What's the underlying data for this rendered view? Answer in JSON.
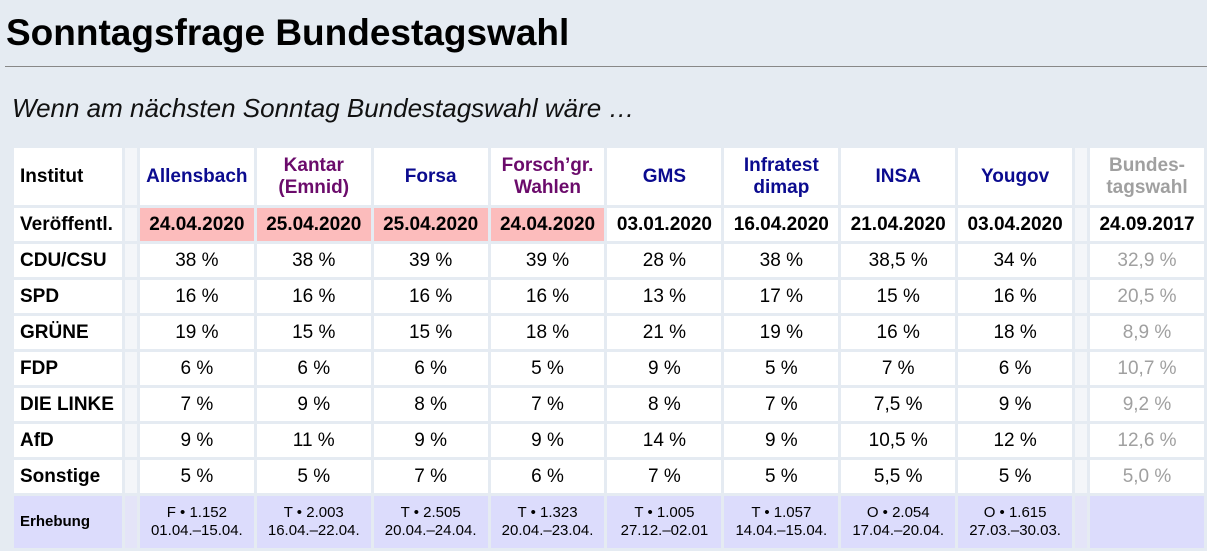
{
  "title": "Sonntagsfrage Bundestagswahl",
  "subtitle": "Wenn am nächsten Sonntag Bundestagswahl wäre …",
  "table": {
    "header_label": "Institut",
    "published_label": "Veröffentl.",
    "survey_label": "Erhebung",
    "institutes": [
      {
        "name": "Allensbach",
        "color": "blue",
        "published": "24.04.2020",
        "recent": true,
        "values": [
          "38 %",
          "16 %",
          "19 %",
          "6 %",
          "7 %",
          "9 %",
          "5 %"
        ],
        "survey1": "F • 1.152",
        "survey2": "01.04.–15.04."
      },
      {
        "name": "Kantar (Emnid)",
        "color": "purple",
        "published": "25.04.2020",
        "recent": true,
        "values": [
          "38 %",
          "16 %",
          "15 %",
          "6 %",
          "9 %",
          "11 %",
          "5 %"
        ],
        "survey1": "T • 2.003",
        "survey2": "16.04.–22.04."
      },
      {
        "name": "Forsa",
        "color": "blue",
        "published": "25.04.2020",
        "recent": true,
        "values": [
          "39 %",
          "16 %",
          "15 %",
          "6 %",
          "8 %",
          "9 %",
          "7 %"
        ],
        "survey1": "T • 2.505",
        "survey2": "20.04.–24.04."
      },
      {
        "name": "Forsch’gr. Wahlen",
        "color": "purple",
        "published": "24.04.2020",
        "recent": true,
        "values": [
          "39 %",
          "16 %",
          "18 %",
          "5 %",
          "7 %",
          "9 %",
          "6 %"
        ],
        "survey1": "T • 1.323",
        "survey2": "20.04.–23.04."
      },
      {
        "name": "GMS",
        "color": "blue",
        "published": "03.01.2020",
        "recent": false,
        "values": [
          "28 %",
          "13 %",
          "21 %",
          "9 %",
          "8 %",
          "14 %",
          "7 %"
        ],
        "survey1": "T • 1.005",
        "survey2": "27.12.–02.01"
      },
      {
        "name": "Infratest dimap",
        "color": "blue",
        "published": "16.04.2020",
        "recent": false,
        "values": [
          "38 %",
          "17 %",
          "19 %",
          "5 %",
          "7 %",
          "9 %",
          "5 %"
        ],
        "survey1": "T • 1.057",
        "survey2": "14.04.–15.04."
      },
      {
        "name": "INSA",
        "color": "blue",
        "published": "21.04.2020",
        "recent": false,
        "values": [
          "38,5 %",
          "15 %",
          "16 %",
          "7 %",
          "7,5 %",
          "10,5 %",
          "5,5 %"
        ],
        "survey1": "O • 2.054",
        "survey2": "17.04.–20.04."
      },
      {
        "name": "Yougov",
        "color": "blue",
        "published": "03.04.2020",
        "recent": false,
        "values": [
          "34 %",
          "16 %",
          "18 %",
          "6 %",
          "9 %",
          "12 %",
          "5 %"
        ],
        "survey1": "O • 1.615",
        "survey2": "27.03.–30.03."
      }
    ],
    "election": {
      "name": "Bundes-tagswahl",
      "published": "24.09.2017",
      "values": [
        "32,9 %",
        "20,5 %",
        "8,9 %",
        "10,7 %",
        "9,2 %",
        "12,6 %",
        "5,0 %"
      ]
    },
    "parties": [
      "CDU/CSU",
      "SPD",
      "GRÜNE",
      "FDP",
      "DIE LINKE",
      "AfD",
      "Sonstige"
    ]
  },
  "colors": {
    "blue": "#0b0b8f",
    "purple": "#6b0b6b",
    "recent": "#fcbcbc",
    "survey_bg": "#dcdcfc",
    "election_gray": "#a0a0a0"
  }
}
